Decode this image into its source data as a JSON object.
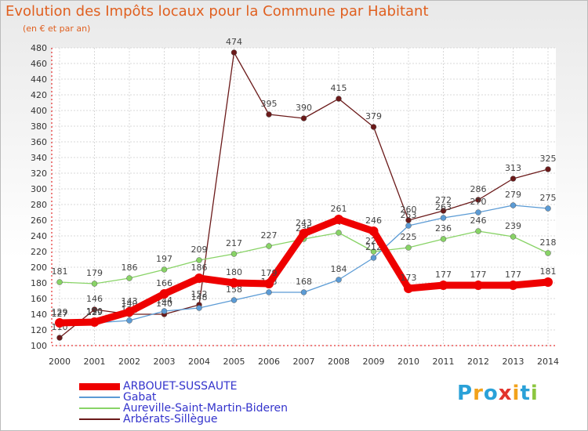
{
  "title": "Evolution des Impôts locaux pour la Commune par Habitant",
  "subtitle": "(en € et par an)",
  "logo": [
    "P",
    "r",
    "o",
    "x",
    "i",
    "t",
    "i"
  ],
  "logo_colors": [
    "#2aa1d8",
    "#f2a21b",
    "#2aa1d8",
    "#e2342d",
    "#f2a21b",
    "#2aa1d8",
    "#8cc63f"
  ],
  "chart_data": {
    "type": "line",
    "title": "Evolution des Impôts locaux pour la Commune par Habitant",
    "x": [
      2000,
      2001,
      2002,
      2003,
      2004,
      2005,
      2006,
      2007,
      2008,
      2009,
      2010,
      2011,
      2012,
      2013,
      2014
    ],
    "ylim": [
      100,
      480
    ],
    "yticks": [
      100,
      120,
      140,
      160,
      180,
      200,
      220,
      240,
      260,
      280,
      300,
      320,
      340,
      360,
      380,
      400,
      420,
      440,
      460,
      480
    ],
    "series": [
      {
        "name": "Arbérats-Sillègue",
        "color": "#6b1a1a",
        "thick": false,
        "values": [
          110,
          146,
          140,
          140,
          152,
          474,
          395,
          390,
          415,
          379,
          260,
          272,
          286,
          313,
          325
        ],
        "labels": [
          "110",
          "146",
          "140",
          "140",
          "152",
          "474",
          "395",
          "390",
          "415",
          "379",
          "260",
          "272",
          "286",
          "313",
          "325"
        ]
      },
      {
        "name": "Aureville-Saint-Martin-Bideren",
        "color": "#88d366",
        "thick": false,
        "values": [
          181,
          179,
          186,
          197,
          209,
          217,
          227,
          236,
          244,
          220,
          225,
          236,
          246,
          239,
          218
        ],
        "labels": [
          "181",
          "179",
          "186",
          "197",
          "209",
          "217",
          "227",
          "236",
          "244",
          "220",
          "225",
          "236",
          "246",
          "239",
          "218"
        ]
      },
      {
        "name": "Gabat",
        "color": "#5b9bd5",
        "thick": false,
        "values": [
          127,
          129,
          132,
          144,
          148,
          158,
          168,
          168,
          184,
          212,
          253,
          263,
          270,
          279,
          275
        ],
        "labels": [
          "127",
          "129",
          "132",
          "144",
          "148",
          "158",
          "168",
          "168",
          "184",
          "212",
          "253",
          "263",
          "270",
          "279",
          "275"
        ]
      },
      {
        "name": "ARBOUET-SUSSAUTE",
        "color": "#ee0000",
        "thick": true,
        "values": [
          129,
          130,
          143,
          166,
          186,
          180,
          179,
          243,
          261,
          246,
          173,
          177,
          177,
          177,
          181
        ],
        "labels": [
          "129",
          "130",
          "143",
          "166",
          "186",
          "180",
          "179",
          "243",
          "261",
          "246",
          "173",
          "177",
          "177",
          "177",
          "181"
        ]
      }
    ],
    "legend_order": [
      "ARBOUET-SUSSAUTE",
      "Gabat",
      "Aureville-Saint-Martin-Bideren",
      "Arbérats-Sillègue"
    ]
  }
}
